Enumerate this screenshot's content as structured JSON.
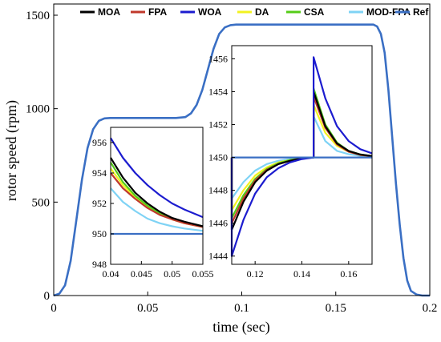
{
  "chart_data": [
    {
      "type": "line",
      "title": "",
      "xlabel": "time (sec)",
      "ylabel": "rotor speed (rpm)",
      "xlim": [
        0,
        0.2
      ],
      "ylim": [
        0,
        1560
      ],
      "xticks": [
        0,
        0.05,
        0.1,
        0.15,
        0.2
      ],
      "xtick_labels": [
        "0",
        "0.05",
        "0.1",
        "0.15",
        "0.2"
      ],
      "yticks": [
        0,
        500,
        1000,
        1500
      ],
      "ytick_labels": [
        "0",
        "500",
        "1000",
        "1500"
      ],
      "grid": false,
      "legend": "top",
      "series": [
        {
          "name": "MOA",
          "color": "#000000"
        },
        {
          "name": "FPA",
          "color": "#c0392b"
        },
        {
          "name": "WOA",
          "color": "#1c1ccf"
        },
        {
          "name": "DA",
          "color": "#f2f21f"
        },
        {
          "name": "CSA",
          "color": "#55cc18"
        },
        {
          "name": "MOD-FPA",
          "color": "#7fd3f5"
        },
        {
          "name": "Ref",
          "color": "#3a6fc4",
          "x": [
            0,
            0.003,
            0.006,
            0.009,
            0.012,
            0.015,
            0.018,
            0.021,
            0.024,
            0.027,
            0.03,
            0.035,
            0.04,
            0.045,
            0.05,
            0.055,
            0.06,
            0.065,
            0.07,
            0.073,
            0.076,
            0.079,
            0.082,
            0.085,
            0.088,
            0.091,
            0.094,
            0.097,
            0.1,
            0.11,
            0.13,
            0.15,
            0.17,
            0.172,
            0.174,
            0.176,
            0.178,
            0.18,
            0.182,
            0.184,
            0.186,
            0.188,
            0.19,
            0.193,
            0.196,
            0.2
          ],
          "y": [
            0,
            10,
            55,
            185,
            400,
            620,
            790,
            890,
            935,
            948,
            950,
            950,
            950,
            950,
            950,
            950,
            950,
            950,
            955,
            975,
            1020,
            1100,
            1210,
            1320,
            1400,
            1435,
            1447,
            1450,
            1450,
            1450,
            1450,
            1450,
            1450,
            1440,
            1400,
            1300,
            1100,
            850,
            600,
            380,
            200,
            80,
            25,
            5,
            0,
            0
          ]
        }
      ]
    },
    {
      "type": "line",
      "title": "",
      "inset": "left",
      "xlim": [
        0.04,
        0.055
      ],
      "ylim": [
        948,
        957
      ],
      "xticks": [
        0.04,
        0.045,
        0.05,
        0.055
      ],
      "xtick_labels": [
        "0.04",
        "0.045",
        "0.05",
        "0.055"
      ],
      "yticks": [
        948,
        950,
        952,
        954,
        956
      ],
      "ytick_labels": [
        "948",
        "950",
        "952",
        "954",
        "956"
      ],
      "series": [
        {
          "name": "MOD-FPA",
          "color": "#7fd3f5",
          "x": [
            0.04,
            0.042,
            0.044,
            0.046,
            0.048,
            0.05,
            0.052,
            0.055
          ],
          "y": [
            953.0,
            952.1,
            951.5,
            951.0,
            950.7,
            950.5,
            950.35,
            950.2
          ]
        },
        {
          "name": "DA",
          "color": "#f2f21f",
          "x": [
            0.04,
            0.042,
            0.044,
            0.046,
            0.048,
            0.05,
            0.052,
            0.055
          ],
          "y": [
            954.3,
            953.2,
            952.4,
            951.8,
            951.3,
            950.95,
            950.7,
            950.45
          ]
        },
        {
          "name": "CSA",
          "color": "#55cc18",
          "x": [
            0.04,
            0.042,
            0.044,
            0.046,
            0.048,
            0.05,
            0.052,
            0.055
          ],
          "y": [
            954.7,
            953.4,
            952.5,
            951.85,
            951.35,
            951.0,
            950.75,
            950.5
          ]
        },
        {
          "name": "FPA",
          "color": "#c0392b",
          "x": [
            0.04,
            0.042,
            0.044,
            0.046,
            0.048,
            0.05,
            0.052,
            0.055
          ],
          "y": [
            954.0,
            953.0,
            952.3,
            951.7,
            951.25,
            950.95,
            950.7,
            950.45
          ]
        },
        {
          "name": "MOA",
          "color": "#000000",
          "x": [
            0.04,
            0.042,
            0.044,
            0.046,
            0.048,
            0.05,
            0.052,
            0.055
          ],
          "y": [
            955.0,
            953.7,
            952.7,
            952.0,
            951.45,
            951.05,
            950.8,
            950.5
          ]
        },
        {
          "name": "WOA",
          "color": "#1c1ccf",
          "x": [
            0.04,
            0.042,
            0.044,
            0.046,
            0.048,
            0.05,
            0.052,
            0.055
          ],
          "y": [
            956.3,
            955.0,
            954.0,
            953.2,
            952.55,
            952.0,
            951.6,
            951.1
          ]
        },
        {
          "name": "Ref",
          "color": "#3a6fc4",
          "x": [
            0.04,
            0.055
          ],
          "y": [
            950,
            950
          ]
        }
      ]
    },
    {
      "type": "line",
      "title": "",
      "inset": "right",
      "xlim": [
        0.11,
        0.17
      ],
      "ylim": [
        1443.5,
        1456.8
      ],
      "xticks": [
        0.12,
        0.14,
        0.16
      ],
      "xtick_labels": [
        "0.12",
        "0.14",
        "0.16"
      ],
      "yticks": [
        1444,
        1446,
        1448,
        1450,
        1452,
        1454,
        1456
      ],
      "ytick_labels": [
        "1444",
        "1446",
        "1448",
        "1450",
        "1452",
        "1454",
        "1456"
      ],
      "series": [
        {
          "name": "MOD-FPA",
          "color": "#7fd3f5",
          "x": [
            0.11,
            0.11,
            0.115,
            0.12,
            0.125,
            0.13,
            0.135,
            0.14,
            0.145,
            0.145,
            0.15,
            0.155,
            0.16,
            0.165,
            0.17
          ],
          "y": [
            1450,
            1447.5,
            1448.5,
            1449.2,
            1449.6,
            1449.8,
            1449.9,
            1450,
            1450,
            1452.5,
            1451.0,
            1450.4,
            1450.2,
            1450.1,
            1450.05
          ]
        },
        {
          "name": "DA",
          "color": "#f2f21f",
          "x": [
            0.11,
            0.11,
            0.115,
            0.12,
            0.125,
            0.13,
            0.135,
            0.14,
            0.145,
            0.145,
            0.15,
            0.155,
            0.16,
            0.165,
            0.17
          ],
          "y": [
            1450,
            1446.8,
            1448.0,
            1448.9,
            1449.4,
            1449.7,
            1449.85,
            1449.95,
            1450,
            1453.2,
            1451.5,
            1450.7,
            1450.35,
            1450.15,
            1450.08
          ]
        },
        {
          "name": "CSA",
          "color": "#55cc18",
          "x": [
            0.11,
            0.11,
            0.115,
            0.12,
            0.125,
            0.13,
            0.135,
            0.14,
            0.145,
            0.145,
            0.15,
            0.155,
            0.16,
            0.165,
            0.17
          ],
          "y": [
            1450,
            1446.3,
            1447.7,
            1448.7,
            1449.3,
            1449.65,
            1449.85,
            1449.95,
            1450,
            1454.2,
            1452.0,
            1450.9,
            1450.4,
            1450.18,
            1450.08
          ]
        },
        {
          "name": "FPA",
          "color": "#c0392b",
          "x": [
            0.11,
            0.11,
            0.115,
            0.12,
            0.125,
            0.13,
            0.135,
            0.14,
            0.145,
            0.145,
            0.15,
            0.155,
            0.16,
            0.165,
            0.17
          ],
          "y": [
            1450,
            1446.0,
            1447.5,
            1448.6,
            1449.25,
            1449.6,
            1449.8,
            1449.95,
            1450,
            1453.7,
            1451.8,
            1450.8,
            1450.35,
            1450.15,
            1450.08
          ]
        },
        {
          "name": "MOA",
          "color": "#000000",
          "x": [
            0.11,
            0.11,
            0.115,
            0.12,
            0.125,
            0.13,
            0.135,
            0.14,
            0.145,
            0.145,
            0.15,
            0.155,
            0.16,
            0.165,
            0.17
          ],
          "y": [
            1450,
            1445.6,
            1447.3,
            1448.5,
            1449.2,
            1449.6,
            1449.8,
            1449.95,
            1450,
            1454.0,
            1451.9,
            1450.85,
            1450.4,
            1450.18,
            1450.08
          ]
        },
        {
          "name": "WOA",
          "color": "#1c1ccf",
          "x": [
            0.11,
            0.11,
            0.115,
            0.12,
            0.125,
            0.13,
            0.135,
            0.14,
            0.145,
            0.145,
            0.15,
            0.155,
            0.16,
            0.165,
            0.17
          ],
          "y": [
            1450,
            1444.0,
            1446.2,
            1447.8,
            1448.8,
            1449.35,
            1449.7,
            1449.9,
            1450,
            1456.1,
            1453.6,
            1451.9,
            1451.0,
            1450.5,
            1450.25
          ]
        },
        {
          "name": "Ref",
          "color": "#3a6fc4",
          "x": [
            0.11,
            0.17
          ],
          "y": [
            1450,
            1450
          ]
        }
      ]
    }
  ]
}
